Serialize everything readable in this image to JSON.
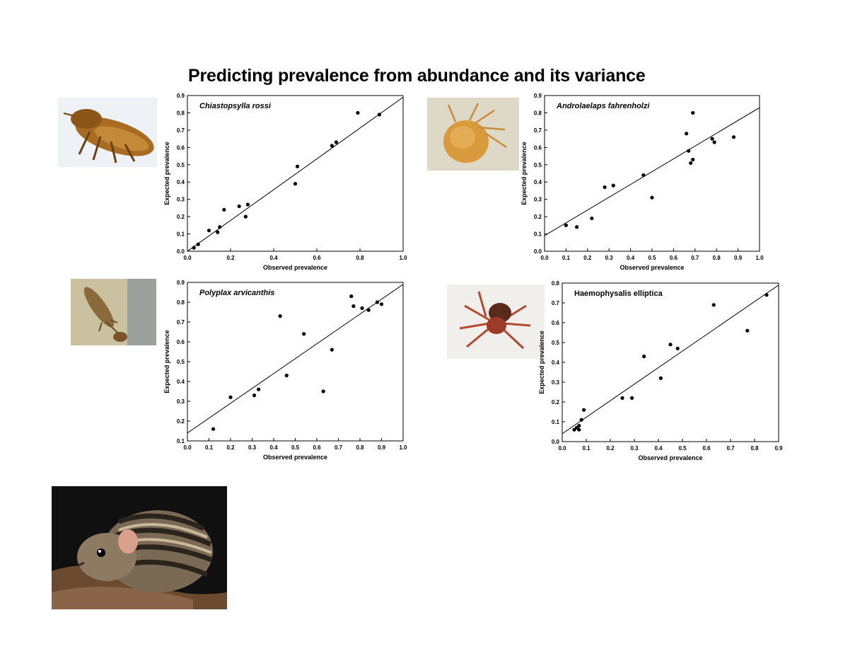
{
  "page": {
    "title": "Predicting prevalence from abundance and its variance"
  },
  "photos": [
    {
      "subject": "flea-photo"
    },
    {
      "subject": "mite-photo"
    },
    {
      "subject": "louse-photo"
    },
    {
      "subject": "tick-photo"
    },
    {
      "subject": "striped-mouse-photo"
    }
  ],
  "chart_data": [
    {
      "type": "scatter",
      "title": "Chiastopsylla rossi",
      "xlabel": "Observed prevalence",
      "ylabel": "Expected prevalence",
      "xlim": [
        0,
        1.0
      ],
      "ylim": [
        0,
        0.9
      ],
      "xticks": [
        "0.0",
        "0.2",
        "0.4",
        "0.6",
        "0.8",
        "1.0"
      ],
      "yticks": [
        "0.0",
        "0.1",
        "0.2",
        "0.3",
        "0.4",
        "0.5",
        "0.6",
        "0.7",
        "0.8",
        "0.9"
      ],
      "grid": false,
      "points": [
        {
          "x": 0.03,
          "y": 0.02
        },
        {
          "x": 0.05,
          "y": 0.04
        },
        {
          "x": 0.1,
          "y": 0.12
        },
        {
          "x": 0.14,
          "y": 0.11
        },
        {
          "x": 0.15,
          "y": 0.14
        },
        {
          "x": 0.17,
          "y": 0.24
        },
        {
          "x": 0.24,
          "y": 0.26
        },
        {
          "x": 0.27,
          "y": 0.2
        },
        {
          "x": 0.28,
          "y": 0.27
        },
        {
          "x": 0.5,
          "y": 0.39
        },
        {
          "x": 0.51,
          "y": 0.49
        },
        {
          "x": 0.67,
          "y": 0.61
        },
        {
          "x": 0.69,
          "y": 0.63
        },
        {
          "x": 0.79,
          "y": 0.8
        },
        {
          "x": 0.89,
          "y": 0.79
        }
      ],
      "fit": {
        "x1": 0.0,
        "y1": 0.0,
        "x2": 1.0,
        "y2": 0.89
      }
    },
    {
      "type": "scatter",
      "title": "Androlaelaps fahrenholzi",
      "xlabel": "Observed prevalence",
      "ylabel": "Expected prevalence",
      "xlim": [
        0,
        1.0
      ],
      "ylim": [
        0,
        0.9
      ],
      "xticks": [
        "0.0",
        "0.1",
        "0.2",
        "0.3",
        "0.4",
        "0.5",
        "0.6",
        "0.7",
        "0.8",
        "0.9",
        "1.0"
      ],
      "yticks": [
        "0.0",
        "0.1",
        "0.2",
        "0.3",
        "0.4",
        "0.5",
        "0.6",
        "0.7",
        "0.8",
        "0.9"
      ],
      "grid": false,
      "points": [
        {
          "x": 0.1,
          "y": 0.15
        },
        {
          "x": 0.15,
          "y": 0.14
        },
        {
          "x": 0.22,
          "y": 0.19
        },
        {
          "x": 0.28,
          "y": 0.37
        },
        {
          "x": 0.32,
          "y": 0.38
        },
        {
          "x": 0.46,
          "y": 0.44
        },
        {
          "x": 0.5,
          "y": 0.31
        },
        {
          "x": 0.66,
          "y": 0.68
        },
        {
          "x": 0.67,
          "y": 0.58
        },
        {
          "x": 0.68,
          "y": 0.51
        },
        {
          "x": 0.69,
          "y": 0.53
        },
        {
          "x": 0.69,
          "y": 0.8
        },
        {
          "x": 0.78,
          "y": 0.65
        },
        {
          "x": 0.79,
          "y": 0.63
        },
        {
          "x": 0.88,
          "y": 0.66
        }
      ],
      "fit": {
        "x1": 0.0,
        "y1": 0.09,
        "x2": 1.0,
        "y2": 0.83
      }
    },
    {
      "type": "scatter",
      "title": "Polyplax arvicanthis",
      "xlabel": "Observed prevalence",
      "ylabel": "Expected prevalence",
      "xlim": [
        0,
        1.0
      ],
      "ylim": [
        0.1,
        0.9
      ],
      "xticks": [
        "0.0",
        "0.1",
        "0.2",
        "0.3",
        "0.4",
        "0.5",
        "0.6",
        "0.7",
        "0.8",
        "0.9",
        "1.0"
      ],
      "yticks": [
        "0.1",
        "0.2",
        "0.3",
        "0.4",
        "0.5",
        "0.6",
        "0.7",
        "0.8",
        "0.9"
      ],
      "grid": false,
      "points": [
        {
          "x": 0.12,
          "y": 0.16
        },
        {
          "x": 0.2,
          "y": 0.32
        },
        {
          "x": 0.31,
          "y": 0.33
        },
        {
          "x": 0.33,
          "y": 0.36
        },
        {
          "x": 0.43,
          "y": 0.73
        },
        {
          "x": 0.46,
          "y": 0.43
        },
        {
          "x": 0.54,
          "y": 0.64
        },
        {
          "x": 0.63,
          "y": 0.35
        },
        {
          "x": 0.67,
          "y": 0.56
        },
        {
          "x": 0.76,
          "y": 0.83
        },
        {
          "x": 0.77,
          "y": 0.78
        },
        {
          "x": 0.81,
          "y": 0.77
        },
        {
          "x": 0.84,
          "y": 0.76
        },
        {
          "x": 0.88,
          "y": 0.8
        },
        {
          "x": 0.9,
          "y": 0.79
        }
      ],
      "fit": {
        "x1": 0.0,
        "y1": 0.14,
        "x2": 1.0,
        "y2": 0.89
      }
    },
    {
      "type": "scatter",
      "title": "Haemophysalis elliptica",
      "xlabel": "Observed prevalence",
      "ylabel": "Expected prevalence",
      "xlim": [
        0,
        0.9
      ],
      "ylim": [
        0,
        0.8
      ],
      "xticks": [
        "0.0",
        "0.1",
        "0.2",
        "0.3",
        "0.4",
        "0.5",
        "0.6",
        "0.7",
        "0.8",
        "0.9"
      ],
      "yticks": [
        "0.0",
        "0.1",
        "0.2",
        "0.3",
        "0.4",
        "0.5",
        "0.6",
        "0.7",
        "0.8"
      ],
      "grid": false,
      "points": [
        {
          "x": 0.05,
          "y": 0.06
        },
        {
          "x": 0.06,
          "y": 0.07
        },
        {
          "x": 0.07,
          "y": 0.06
        },
        {
          "x": 0.07,
          "y": 0.08
        },
        {
          "x": 0.08,
          "y": 0.11
        },
        {
          "x": 0.09,
          "y": 0.16
        },
        {
          "x": 0.25,
          "y": 0.22
        },
        {
          "x": 0.29,
          "y": 0.22
        },
        {
          "x": 0.34,
          "y": 0.43
        },
        {
          "x": 0.41,
          "y": 0.32
        },
        {
          "x": 0.45,
          "y": 0.49
        },
        {
          "x": 0.48,
          "y": 0.47
        },
        {
          "x": 0.63,
          "y": 0.69
        },
        {
          "x": 0.77,
          "y": 0.56
        },
        {
          "x": 0.85,
          "y": 0.74
        }
      ],
      "fit": {
        "x1": 0.0,
        "y1": 0.04,
        "x2": 0.9,
        "y2": 0.79
      }
    }
  ]
}
